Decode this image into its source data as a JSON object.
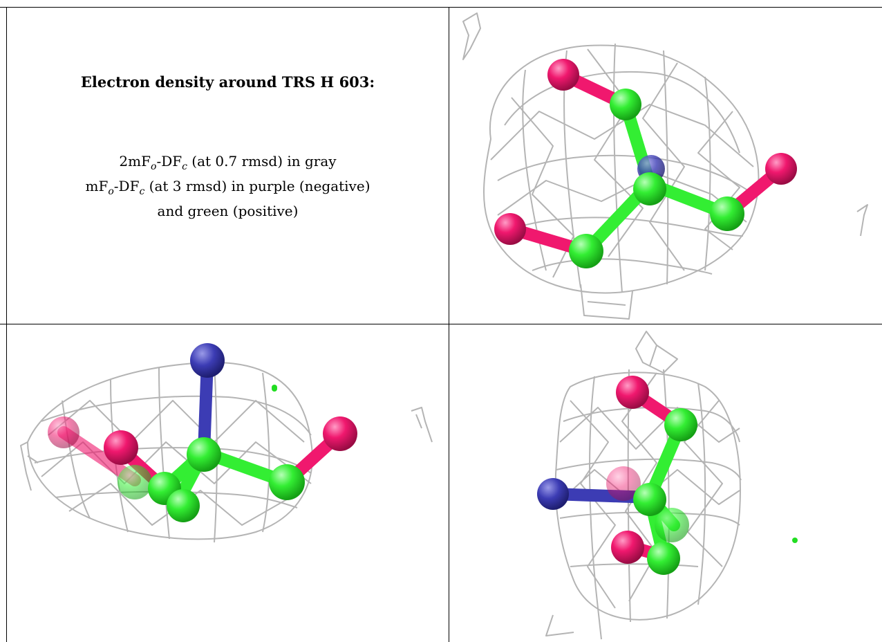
{
  "title": "Electron density around TRS H 603:",
  "legend": {
    "line1_a": "2mF",
    "line1_sub1": "o",
    "line1_b": "-DF",
    "line1_sub2": "c",
    "line1_c": " (at 0.7 rmsd) in gray",
    "line2_a": "mF",
    "line2_sub1": "o",
    "line2_b": "-DF",
    "line2_sub2": "c",
    "line2_c": " (at 3 rmsd) in purple (negative)",
    "line3": "and green (positive)"
  },
  "colors": {
    "mesh": "#b4b4b4",
    "carbon": "#33ee33",
    "oxygen": "#f0186e",
    "nitrogen": "#3c3cb4",
    "positive_blob": "#22dd22"
  },
  "views": [
    {
      "name": "view-top-right"
    },
    {
      "name": "view-bottom-left"
    },
    {
      "name": "view-bottom-right"
    }
  ]
}
